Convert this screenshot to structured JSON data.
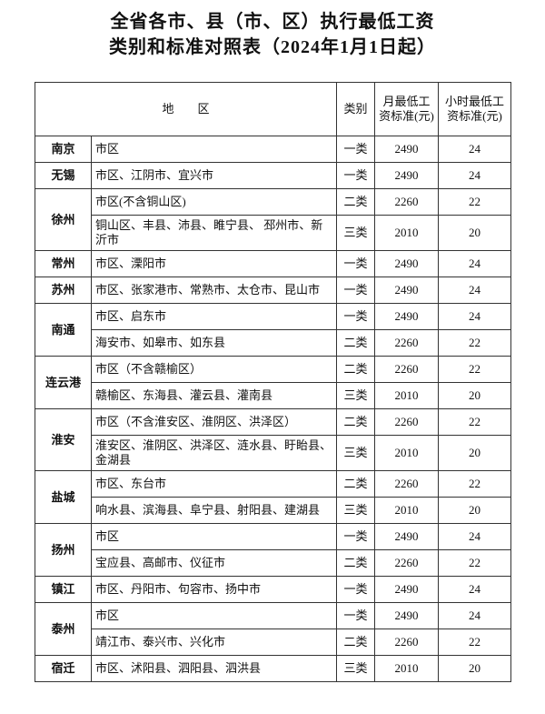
{
  "title": [
    "全省各市、县（市、区）执行最低工资",
    "类别和标准对照表（2024年1月1日起）"
  ],
  "table": {
    "header": [
      "地　　区",
      "类别",
      "月最低工资标准(元)",
      "小时最低工资标准(元)"
    ],
    "groups": [
      {
        "city": "南京",
        "rows": [
          [
            "市区",
            "一类",
            2490,
            24
          ]
        ]
      },
      {
        "city": "无锡",
        "rows": [
          [
            "市区、江阴市、宜兴市",
            "一类",
            2490,
            24
          ]
        ]
      },
      {
        "city": "徐州",
        "rows": [
          [
            "市区(不含铜山区)",
            "二类",
            2260,
            22
          ],
          [
            "铜山区、丰县、沛县、睢宁县、 邳州市、新沂市",
            "三类",
            2010,
            20
          ]
        ]
      },
      {
        "city": "常州",
        "rows": [
          [
            "市区、溧阳市",
            "一类",
            2490,
            24
          ]
        ]
      },
      {
        "city": "苏州",
        "rows": [
          [
            "市区、张家港市、常熟市、太仓市、昆山市",
            "一类",
            2490,
            24
          ]
        ]
      },
      {
        "city": "南通",
        "rows": [
          [
            "市区、启东市",
            "一类",
            2490,
            24
          ],
          [
            "海安市、如皋市、如东县",
            "二类",
            2260,
            22
          ]
        ]
      },
      {
        "city": "连云港",
        "rows": [
          [
            "市区（不含赣榆区）",
            "二类",
            2260,
            22
          ],
          [
            "赣榆区、东海县、灌云县、灌南县",
            "三类",
            2010,
            20
          ]
        ]
      },
      {
        "city": "淮安",
        "rows": [
          [
            "市区（不含淮安区、淮阴区、洪泽区）",
            "二类",
            2260,
            22
          ],
          [
            "淮安区、淮阴区、洪泽区、涟水县、盱眙县、金湖县",
            "三类",
            2010,
            20
          ]
        ]
      },
      {
        "city": "盐城",
        "rows": [
          [
            "市区、东台市",
            "二类",
            2260,
            22
          ],
          [
            "响水县、滨海县、阜宁县、射阳县、建湖县",
            "三类",
            2010,
            20
          ]
        ]
      },
      {
        "city": "扬州",
        "rows": [
          [
            "市区",
            "一类",
            2490,
            24
          ],
          [
            "宝应县、高邮市、仪征市",
            "二类",
            2260,
            22
          ]
        ]
      },
      {
        "city": "镇江",
        "rows": [
          [
            "市区、丹阳市、句容市、扬中市",
            "一类",
            2490,
            24
          ]
        ]
      },
      {
        "city": "泰州",
        "rows": [
          [
            "市区",
            "一类",
            2490,
            24
          ],
          [
            "靖江市、泰兴市、兴化市",
            "二类",
            2260,
            22
          ]
        ]
      },
      {
        "city": "宿迁",
        "rows": [
          [
            "市区、沭阳县、泗阳县、泗洪县",
            "三类",
            2010,
            20
          ]
        ]
      }
    ]
  }
}
